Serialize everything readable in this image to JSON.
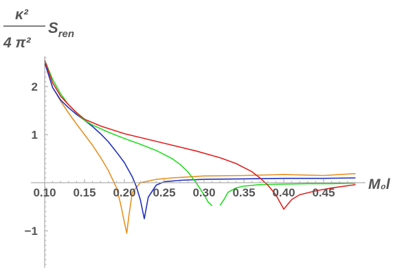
{
  "chart_data": {
    "type": "line",
    "title": "",
    "xlabel": "M₀l",
    "ylabel": {
      "numerator": "κ²",
      "denominator": "4 π²",
      "symbol": "S",
      "subscript": "ren"
    },
    "xlim": [
      0.09,
      0.49
    ],
    "ylim": [
      -1.85,
      2.75
    ],
    "x_ticks": [
      0.1,
      0.15,
      0.2,
      0.25,
      0.3,
      0.35,
      0.4,
      0.45
    ],
    "x_tick_labels": [
      "0.10",
      "0.15",
      "0.20",
      "0.25",
      "0.30",
      "0.35",
      "0.40",
      "0.45"
    ],
    "y_ticks": [
      -1,
      1,
      2
    ],
    "y_tick_labels": [
      "−1",
      "1",
      "2"
    ],
    "grid": false,
    "series": [
      {
        "color": "#e8901e",
        "x": [
          0.1,
          0.11,
          0.12,
          0.13,
          0.14,
          0.15,
          0.16,
          0.17,
          0.18,
          0.19,
          0.195,
          0.2,
          0.203,
          0.206,
          0.21,
          0.22,
          0.24,
          0.26,
          0.3,
          0.35,
          0.4,
          0.45,
          0.48,
          0.49
        ],
        "y": [
          2.5,
          1.98,
          1.7,
          1.45,
          1.22,
          1.0,
          0.78,
          0.53,
          0.25,
          -0.1,
          -0.42,
          -0.82,
          -1.05,
          -0.65,
          -0.2,
          0.0,
          0.07,
          0.1,
          0.14,
          0.15,
          0.17,
          0.15,
          0.18,
          0.19
        ]
      },
      {
        "color": "#1f2fbf",
        "x": [
          0.1,
          0.11,
          0.12,
          0.13,
          0.14,
          0.15,
          0.16,
          0.17,
          0.18,
          0.19,
          0.2,
          0.21,
          0.215,
          0.22,
          0.225,
          0.23,
          0.24,
          0.25,
          0.27,
          0.3,
          0.35,
          0.4,
          0.45,
          0.49
        ],
        "y": [
          2.5,
          1.98,
          1.72,
          1.56,
          1.42,
          1.3,
          1.17,
          1.02,
          0.85,
          0.64,
          0.42,
          0.12,
          -0.08,
          -0.35,
          -0.75,
          -0.3,
          -0.05,
          0.02,
          0.05,
          0.07,
          0.08,
          0.09,
          0.09,
          0.1
        ]
      },
      {
        "color": "#22dd22",
        "x": [
          0.1,
          0.11,
          0.12,
          0.13,
          0.14,
          0.15,
          0.16,
          0.18,
          0.2,
          0.22,
          0.24,
          0.26,
          0.27,
          0.28,
          0.29,
          0.3,
          0.305,
          0.31
        ],
        "y": [
          2.55,
          2.15,
          1.85,
          1.62,
          1.45,
          1.3,
          1.2,
          1.05,
          0.92,
          0.8,
          0.67,
          0.5,
          0.38,
          0.22,
          0.0,
          -0.25,
          -0.4,
          -0.48
        ]
      },
      {
        "color": "#22dd22",
        "x": [
          0.32,
          0.325,
          0.33,
          0.34,
          0.35,
          0.37,
          0.4,
          0.43,
          0.46,
          0.49
        ],
        "y": [
          -0.47,
          -0.35,
          -0.2,
          -0.11,
          -0.07,
          -0.04,
          -0.03,
          -0.02,
          -0.02,
          -0.01
        ]
      },
      {
        "color": "#e02020",
        "x": [
          0.1,
          0.11,
          0.12,
          0.13,
          0.14,
          0.15,
          0.17,
          0.2,
          0.23,
          0.26,
          0.29,
          0.32,
          0.34,
          0.36,
          0.37,
          0.38,
          0.39,
          0.395,
          0.4,
          0.405,
          0.41,
          0.42,
          0.44,
          0.46,
          0.49
        ],
        "y": [
          2.55,
          2.08,
          1.8,
          1.62,
          1.46,
          1.32,
          1.18,
          1.02,
          0.9,
          0.78,
          0.66,
          0.52,
          0.4,
          0.23,
          0.1,
          -0.05,
          -0.25,
          -0.4,
          -0.55,
          -0.45,
          -0.35,
          -0.25,
          -0.17,
          -0.11,
          -0.04
        ]
      }
    ]
  }
}
